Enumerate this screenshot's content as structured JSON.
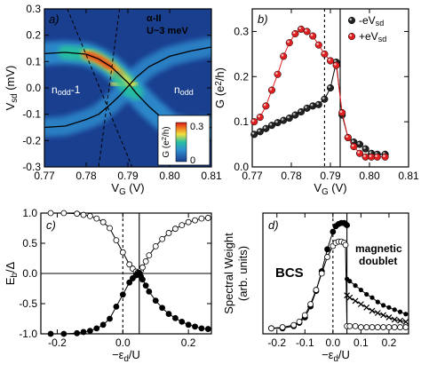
{
  "chart_data": [
    {
      "panel": "a)",
      "type": "heatmap",
      "xlabel": "V_G (V)",
      "ylabel": "V_sd (mV)",
      "xlim": [
        0.77,
        0.81
      ],
      "ylim": [
        -0.3,
        0.3
      ],
      "xticks": [
        "0.77",
        "0.78",
        "0.79",
        "0.80",
        "0.81"
      ],
      "yticks": [
        "-0.3",
        "-0.2",
        "-0.1",
        "0.0",
        "0.1",
        "0.2",
        "0.3"
      ],
      "annotations": [
        "α-II",
        "U~3 meV",
        "n_odd-1",
        "n_odd"
      ],
      "colorbar": {
        "label": "G (e²/h)",
        "min": 0,
        "max": 0.3,
        "ticks": [
          "0.3",
          "0"
        ]
      },
      "ridges": [
        {
          "x": [
            0.77,
            0.775,
            0.78,
            0.783,
            0.786,
            0.788,
            0.79,
            0.792,
            0.795,
            0.8,
            0.805,
            0.81
          ],
          "y": [
            0.13,
            0.135,
            0.128,
            0.11,
            0.08,
            0.05,
            0.02,
            -0.02,
            -0.07,
            -0.14,
            -0.16,
            -0.15
          ]
        },
        {
          "x": [
            0.77,
            0.775,
            0.78,
            0.783,
            0.786,
            0.788,
            0.79,
            0.792,
            0.795,
            0.8,
            0.805,
            0.81
          ],
          "y": [
            -0.15,
            -0.145,
            -0.12,
            -0.1,
            -0.06,
            -0.03,
            0.005,
            0.04,
            0.08,
            0.12,
            0.14,
            0.155
          ]
        }
      ],
      "dashed_lines": [
        {
          "x": [
            0.7755,
            0.791
          ],
          "y": [
            0.3,
            -0.3
          ]
        },
        {
          "x": [
            0.788,
            0.783
          ],
          "y": [
            0.3,
            -0.3
          ]
        }
      ]
    },
    {
      "panel": "b)",
      "type": "line",
      "xlabel": "V_G (V)",
      "ylabel": "G (e²/h)",
      "xlim": [
        0.77,
        0.81
      ],
      "ylim": [
        0.0,
        0.35
      ],
      "xticks": [
        "0.77",
        "0.78",
        "0.79",
        "0.80",
        "0.81"
      ],
      "yticks": [
        "0.0",
        "0.1",
        "0.2",
        "0.3"
      ],
      "legend": [
        "-eV_sd",
        "+eV_sd"
      ],
      "legend_position": "top-right",
      "vlines": [
        {
          "x": 0.7885,
          "style": "dotted"
        },
        {
          "x": 0.7925,
          "style": "solid"
        }
      ],
      "series": [
        {
          "name": "-eV_sd",
          "color": "#000000",
          "x": [
            0.7705,
            0.772,
            0.7735,
            0.775,
            0.7765,
            0.778,
            0.7795,
            0.781,
            0.7825,
            0.784,
            0.7855,
            0.787,
            0.7885,
            0.79,
            0.7915,
            0.793,
            0.7945,
            0.796,
            0.7975,
            0.799,
            0.8005,
            0.802,
            0.804
          ],
          "y": [
            0.072,
            0.078,
            0.085,
            0.092,
            0.098,
            0.103,
            0.108,
            0.115,
            0.122,
            0.13,
            0.135,
            0.138,
            0.15,
            0.175,
            0.232,
            0.115,
            0.065,
            0.055,
            0.05,
            0.04,
            0.03,
            0.028,
            0.028
          ]
        },
        {
          "name": "+eV_sd",
          "color": "#e02020",
          "x": [
            0.7705,
            0.772,
            0.7735,
            0.775,
            0.7765,
            0.778,
            0.7795,
            0.781,
            0.7825,
            0.784,
            0.7855,
            0.787,
            0.7885,
            0.79,
            0.7915,
            0.793,
            0.7945,
            0.796,
            0.7975,
            0.799,
            0.8005,
            0.802,
            0.804
          ],
          "y": [
            0.1,
            0.11,
            0.135,
            0.17,
            0.205,
            0.245,
            0.275,
            0.295,
            0.305,
            0.3,
            0.29,
            0.27,
            0.25,
            0.235,
            0.225,
            0.12,
            0.065,
            0.045,
            0.03,
            0.022,
            0.022,
            0.022,
            0.022
          ]
        }
      ]
    },
    {
      "panel": "c)",
      "type": "line",
      "xlabel": "−ε_d/U",
      "ylabel": "E_b/Δ",
      "xlim": [
        -0.25,
        0.27
      ],
      "ylim": [
        -1.0,
        1.0
      ],
      "xticks": [
        "-0.2",
        "0.0",
        "0.2"
      ],
      "yticks": [
        "-1.0",
        "-0.5",
        "0.0",
        "0.5",
        "1.0"
      ],
      "vlines": [
        {
          "x": 0.0,
          "style": "dotted"
        },
        {
          "x": 0.05,
          "style": "solid"
        }
      ],
      "hlines": [
        {
          "y": 0.0,
          "style": "solid"
        }
      ],
      "series": [
        {
          "marker": "open",
          "x": [
            -0.22,
            -0.18,
            -0.14,
            -0.12,
            -0.1,
            -0.08,
            -0.06,
            -0.04,
            -0.02,
            0.0,
            0.02,
            0.03,
            0.04,
            0.045,
            0.05,
            0.055,
            0.06,
            0.07,
            0.08,
            0.1,
            0.12,
            0.14,
            0.16,
            0.18,
            0.2,
            0.22,
            0.24,
            0.26
          ],
          "y": [
            1.0,
            1.0,
            0.99,
            0.97,
            0.95,
            0.91,
            0.85,
            0.75,
            0.55,
            0.35,
            0.15,
            0.08,
            0.03,
            0.01,
            -0.01,
            0.05,
            0.1,
            0.2,
            0.3,
            0.45,
            0.57,
            0.67,
            0.74,
            0.8,
            0.85,
            0.88,
            0.91,
            0.92
          ]
        },
        {
          "marker": "filled",
          "x": [
            -0.22,
            -0.18,
            -0.14,
            -0.12,
            -0.1,
            -0.08,
            -0.06,
            -0.04,
            -0.02,
            0.0,
            0.02,
            0.03,
            0.04,
            0.045,
            0.05,
            0.055,
            0.06,
            0.07,
            0.08,
            0.1,
            0.12,
            0.14,
            0.16,
            0.18,
            0.2,
            0.22,
            0.24,
            0.26
          ],
          "y": [
            -1.0,
            -1.0,
            -0.99,
            -0.97,
            -0.95,
            -0.91,
            -0.85,
            -0.75,
            -0.55,
            -0.35,
            -0.15,
            -0.08,
            -0.03,
            -0.01,
            0.01,
            -0.05,
            -0.1,
            -0.2,
            -0.3,
            -0.45,
            -0.57,
            -0.67,
            -0.74,
            -0.8,
            -0.85,
            -0.88,
            -0.91,
            -0.92
          ]
        }
      ]
    },
    {
      "panel": "d)",
      "type": "line",
      "xlabel": "−ε_d/U",
      "ylabel": "Spectral Weight (arb. units)",
      "xlim": [
        -0.25,
        0.27
      ],
      "xticks": [
        "-0.2",
        "-0.1",
        "0.0",
        "0.1",
        "0.2"
      ],
      "annotations": [
        "BCS",
        "magnetic",
        "doublet"
      ],
      "vlines": [
        {
          "x": 0.0,
          "style": "dotted"
        },
        {
          "x": 0.05,
          "style": "solid"
        }
      ],
      "series": [
        {
          "marker": "filled",
          "x": [
            -0.22,
            -0.18,
            -0.14,
            -0.12,
            -0.1,
            -0.08,
            -0.06,
            -0.04,
            -0.02,
            0.0,
            0.01,
            0.02,
            0.03,
            0.04,
            0.045,
            0.05
          ],
          "y": [
            0.0,
            0.0,
            0.02,
            0.05,
            0.1,
            0.2,
            0.34,
            0.52,
            0.72,
            0.88,
            0.93,
            0.95,
            0.96,
            0.96,
            0.95,
            0.94
          ]
        },
        {
          "marker": "open",
          "x": [
            -0.22,
            -0.18,
            -0.14,
            -0.12,
            -0.1,
            -0.08,
            -0.06,
            -0.04,
            -0.02,
            0.0,
            0.01,
            0.02,
            0.03,
            0.04,
            0.045,
            0.05,
            0.06,
            0.08,
            0.1,
            0.12,
            0.14,
            0.16,
            0.18,
            0.2,
            0.22,
            0.24,
            0.26
          ],
          "y": [
            0.0,
            0.01,
            0.03,
            0.06,
            0.12,
            0.22,
            0.35,
            0.5,
            0.65,
            0.75,
            0.78,
            0.79,
            0.79,
            0.78,
            0.76,
            0.02,
            0.02,
            0.02,
            0.01,
            0.01,
            0.01,
            0.01,
            0.01,
            0.01,
            0.01,
            0.01,
            0.01
          ]
        },
        {
          "marker": "filled-small",
          "x": [
            0.05,
            0.06,
            0.08,
            0.1,
            0.12,
            0.14,
            0.16,
            0.18,
            0.2,
            0.22,
            0.24,
            0.26
          ],
          "y": [
            0.45,
            0.43,
            0.39,
            0.35,
            0.31,
            0.28,
            0.24,
            0.21,
            0.19,
            0.17,
            0.15,
            0.13
          ]
        },
        {
          "marker": "cross",
          "x": [
            0.05,
            0.06,
            0.08,
            0.1,
            0.12,
            0.14,
            0.16,
            0.18,
            0.2,
            0.22,
            0.24,
            0.26
          ],
          "y": [
            0.3,
            0.28,
            0.25,
            0.22,
            0.19,
            0.16,
            0.14,
            0.12,
            0.1,
            0.08,
            0.07,
            0.06
          ]
        }
      ]
    }
  ]
}
